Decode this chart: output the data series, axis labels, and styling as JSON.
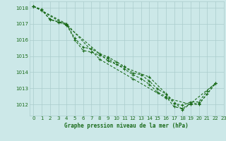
{
  "background_color": "#cce8e8",
  "grid_color": "#aacccc",
  "line_color": "#1a6b1a",
  "title": "Graphe pression niveau de la mer (hPa)",
  "xlim": [
    -0.5,
    23
  ],
  "ylim": [
    1011.3,
    1018.4
  ],
  "yticks": [
    1012,
    1013,
    1014,
    1015,
    1016,
    1017,
    1018
  ],
  "xticks": [
    0,
    1,
    2,
    3,
    4,
    5,
    6,
    7,
    8,
    9,
    10,
    11,
    12,
    13,
    14,
    15,
    16,
    17,
    18,
    19,
    20,
    21,
    22,
    23
  ],
  "lines": [
    {
      "x": [
        0,
        1,
        2,
        3,
        4,
        5,
        6,
        7,
        8,
        9,
        10,
        11,
        12,
        13,
        14,
        15,
        16,
        17,
        18,
        19,
        20,
        21,
        22
      ],
      "y": [
        1018.1,
        1017.85,
        1017.3,
        1017.1,
        1016.95,
        1016.0,
        1015.35,
        1015.25,
        1015.05,
        1014.85,
        1014.5,
        1014.2,
        1013.85,
        1013.6,
        1013.25,
        1012.75,
        1012.5,
        1011.85,
        1011.75,
        1012.05,
        1012.05,
        1012.65,
        1013.3
      ]
    },
    {
      "x": [
        0,
        1,
        2,
        3,
        4,
        5,
        6,
        7,
        8,
        9,
        10,
        11,
        12,
        13,
        14,
        15,
        16,
        17,
        18,
        19,
        20,
        21,
        22
      ],
      "y": [
        1018.1,
        1017.9,
        1017.25,
        1017.15,
        1017.0,
        1016.1,
        1015.55,
        1015.45,
        1015.15,
        1014.95,
        1014.65,
        1014.35,
        1013.95,
        1013.85,
        1013.45,
        1012.95,
        1012.65,
        1012.05,
        1011.95,
        1012.15,
        1012.15,
        1012.85,
        1013.3
      ]
    },
    {
      "x": [
        0,
        4,
        9,
        14,
        18,
        22
      ],
      "y": [
        1018.1,
        1016.9,
        1014.7,
        1013.7,
        1011.65,
        1013.3
      ]
    },
    {
      "x": [
        0,
        4,
        8,
        12,
        16,
        19,
        20,
        22
      ],
      "y": [
        1018.1,
        1017.0,
        1014.8,
        1013.6,
        1012.4,
        1012.0,
        1012.0,
        1013.3
      ]
    }
  ]
}
